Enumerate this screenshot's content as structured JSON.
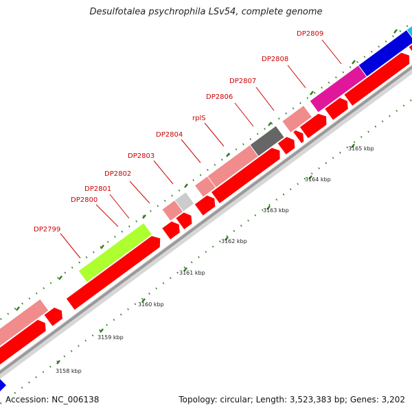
{
  "title": "Desulfotalea psychrophila LSv54, complete genome",
  "footer": {
    "accession": "Accession: NC_006138",
    "summary": "Topology: circular; Length: 3,523,383 bp; Genes: 3,202"
  },
  "colors": {
    "forward_cds": "#ff0000",
    "backbone": "#999999",
    "label": "#cc0000",
    "tick": "#2e7d1f"
  },
  "kbp_labels": [
    "3158 kbp",
    "3159 kbp",
    "3160 kbp",
    "3161 kbp",
    "3162 kbp",
    "3163 kbp",
    "3164 kbp",
    "3165 kbp"
  ],
  "genes": [
    {
      "name": "",
      "color": "#f08c8c"
    },
    {
      "name": "DP2799",
      "color": "#adff2f"
    },
    {
      "name": "DP2800",
      "color": "#f08c8c"
    },
    {
      "name": "DP2801",
      "color": "#cccccc"
    },
    {
      "name": "DP2802",
      "color": "#f08c8c"
    },
    {
      "name": "DP2803",
      "color": "#f08c8c"
    },
    {
      "name": "DP2804",
      "color": "#666666"
    },
    {
      "name": "rplS",
      "color": "#f08c8c"
    },
    {
      "name": "DP2806",
      "color": "#e0179a"
    },
    {
      "name": "DP2807",
      "color": "#0000dd"
    },
    {
      "name": "DP2808",
      "color": "#19bfef"
    },
    {
      "name": "DP2809",
      "color": "#cccccc"
    }
  ]
}
